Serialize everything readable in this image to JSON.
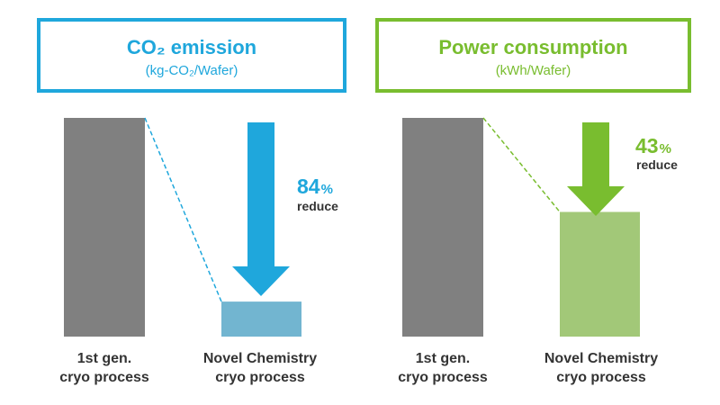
{
  "chart_data": [
    {
      "type": "bar",
      "title": "CO₂ emission",
      "unit": "(kg-CO₂/Wafer)",
      "categories": [
        "1st gen.\ncryo process",
        "Novel Chemistry\ncryo process"
      ],
      "values": [
        100,
        16
      ],
      "ylim": [
        0,
        100
      ],
      "annotation": {
        "value": "84",
        "symbol": "%",
        "text": "reduce"
      },
      "colors": {
        "accent": "#1fa7dc",
        "bars": [
          "#808080",
          "#72b5d0"
        ]
      }
    },
    {
      "type": "bar",
      "title": "Power consumption",
      "unit": "(kWh/Wafer)",
      "categories": [
        "1st gen.\ncryo process",
        "Novel Chemistry\ncryo process"
      ],
      "values": [
        100,
        57
      ],
      "ylim": [
        0,
        100
      ],
      "annotation": {
        "value": "43",
        "symbol": "%",
        "text": "reduce"
      },
      "colors": {
        "accent": "#79bd2f",
        "bars": [
          "#808080",
          "#a2c878"
        ]
      }
    }
  ],
  "labels": {
    "cat1_line1": "1st gen.",
    "cat1_line2": "cryo process",
    "cat2_line1": "Novel Chemistry",
    "cat2_line2": "cryo process"
  }
}
